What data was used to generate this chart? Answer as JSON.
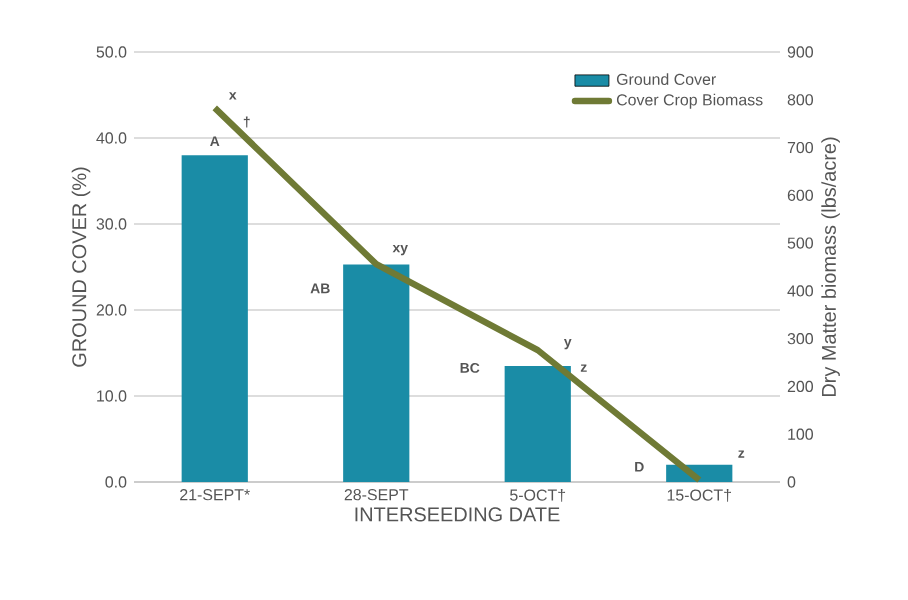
{
  "chart_data": {
    "type": "bar",
    "xlabel": "INTERSEEDING DATE",
    "ylabel": "GROUND COVER (%)",
    "y2label": "Dry Matter biomass (lbs/acre)",
    "categories": [
      "21-SEPT*",
      "28-SEPT",
      "5-OCT†",
      "15-OCT†"
    ],
    "series": [
      {
        "name": "Ground Cover",
        "color": "#1a8ca6",
        "values": [
          38,
          25.3,
          13.5,
          2
        ]
      },
      {
        "name": "Cover Crop Biomass",
        "type": "line",
        "axis": "y2",
        "color": "#6f7a35",
        "values": [
          783,
          456,
          276,
          4
        ],
        "marker": "none"
      }
    ],
    "ylim": [
      0,
      50
    ],
    "yticks": [
      {
        "value": 0,
        "label": "0.0"
      },
      {
        "value": 10,
        "label": "10.0"
      },
      {
        "value": 20,
        "label": "20.0"
      },
      {
        "value": 30,
        "label": "30.0"
      },
      {
        "value": 40,
        "label": "40.0"
      },
      {
        "value": 50,
        "label": "50.0"
      }
    ],
    "y2lim": [
      0,
      900
    ],
    "y2ticks": [
      0,
      100,
      200,
      300,
      400,
      500,
      600,
      700,
      800,
      900
    ],
    "grid": "y",
    "legend": "top right",
    "annotations": [
      "A",
      "x",
      "†",
      "AB",
      "xy",
      "BC",
      "y",
      "z",
      "D",
      "z"
    ]
  }
}
